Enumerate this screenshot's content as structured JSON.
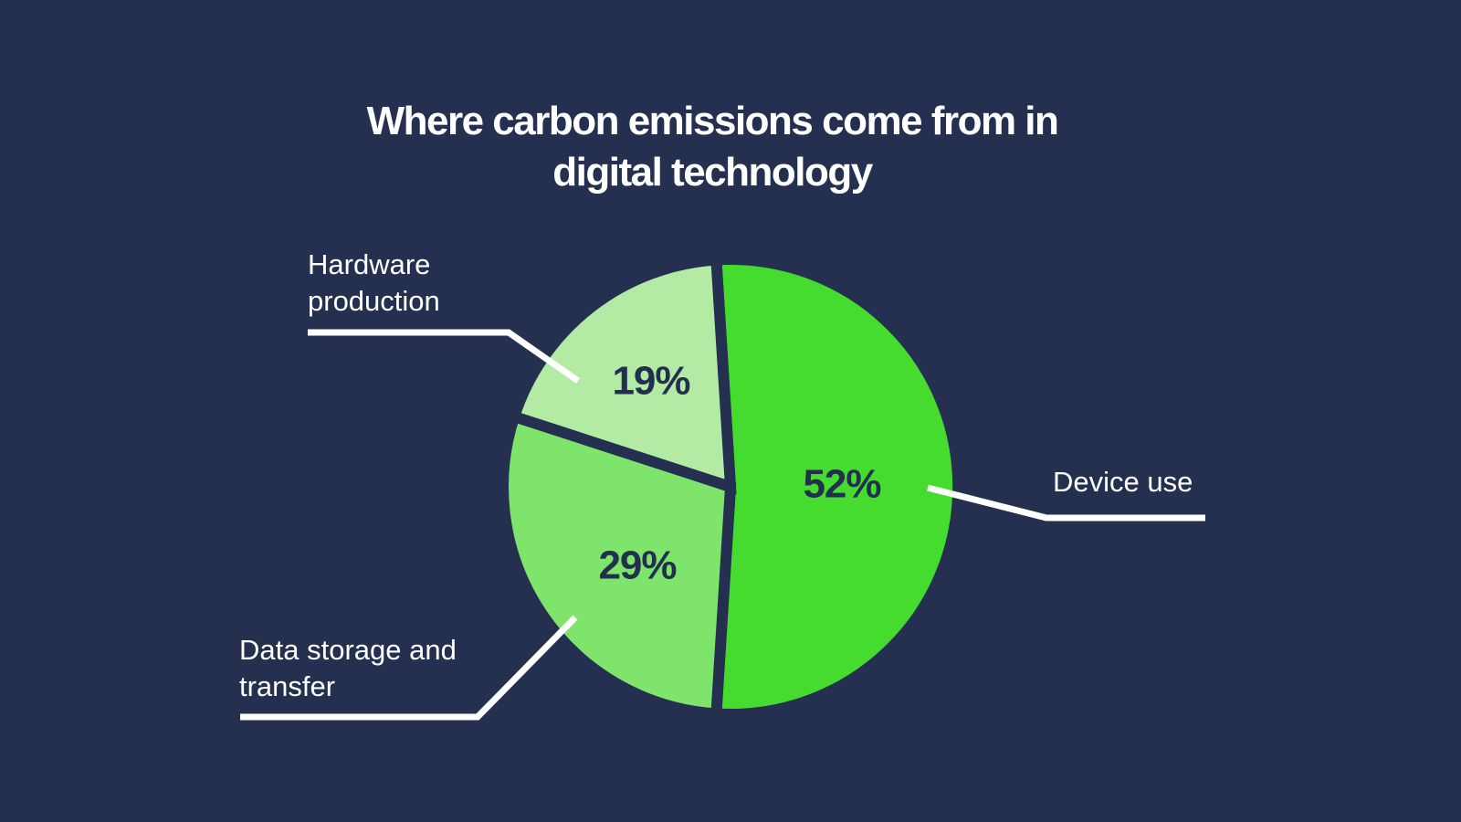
{
  "page": {
    "background": "#253050"
  },
  "title": {
    "text": "Where carbon emissions come from in digital technology",
    "lines": [
      "Where carbon emissions come from in",
      "digital technology"
    ]
  },
  "chart_data": {
    "type": "pie",
    "title": "Where carbon emissions come from in digital technology",
    "unit": "%",
    "total": 100,
    "background": "#253050",
    "value_label_color": "#22304e",
    "callout_text_color": "#ffffff",
    "leader_line_color": "#ffffff",
    "legend_position": "callout-labels",
    "slices": [
      {
        "label": "Device use",
        "value": 52,
        "color": "#45dc2f",
        "label_lines": [
          "Device use"
        ]
      },
      {
        "label": "Data storage and transfer",
        "value": 29,
        "color": "#7fe46c",
        "label_lines": [
          "Data storage and",
          "transfer"
        ]
      },
      {
        "label": "Hardware production",
        "value": 19,
        "color": "#b4eba4",
        "label_lines": [
          "Hardware",
          "production"
        ]
      }
    ]
  }
}
